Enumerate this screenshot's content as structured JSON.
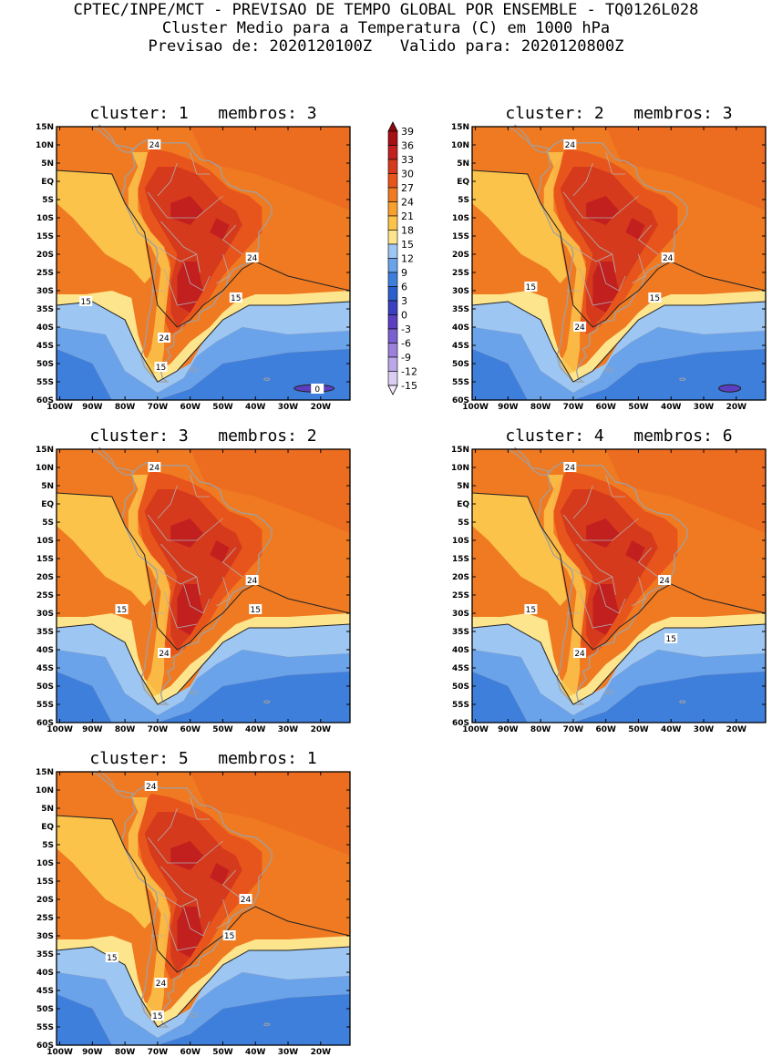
{
  "header": {
    "line1": "CPTEC/INPE/MCT - PREVISAO DE TEMPO GLOBAL POR ENSEMBLE - TQ0126L028",
    "line2": "Cluster Medio para a Temperatura (C) em 1000 hPa",
    "line3": "Previsao de: 2020120100Z   Valido para: 2020120800Z"
  },
  "axes": {
    "lat_labels": [
      "15N",
      "10N",
      "5N",
      "EQ",
      "5S",
      "10S",
      "15S",
      "20S",
      "25S",
      "30S",
      "35S",
      "40S",
      "45S",
      "50S",
      "55S",
      "60S"
    ],
    "lon_labels": [
      "100W",
      "90W",
      "80W",
      "70W",
      "60W",
      "50W",
      "40W",
      "30W",
      "20W"
    ],
    "lon_range": [
      -101,
      -11
    ],
    "lat_range": [
      -60,
      15
    ]
  },
  "colorbar": {
    "labels": [
      "39",
      "36",
      "33",
      "30",
      "27",
      "24",
      "21",
      "18",
      "15",
      "12",
      "9",
      "6",
      "3",
      "0",
      "-3",
      "-6",
      "-9",
      "-12",
      "-15"
    ],
    "colors": [
      "#a50f15",
      "#c21f1f",
      "#d63a1c",
      "#e8551c",
      "#f07a22",
      "#f7a02e",
      "#fbc34a",
      "#fde58d",
      "#9dc6f2",
      "#6aa3ea",
      "#3f7fdc",
      "#2a5fcc",
      "#3a3fc0",
      "#5a3fc0",
      "#7b5fd0",
      "#9c80dc",
      "#bba6e8",
      "#d9cdf2"
    ]
  },
  "panels": [
    {
      "title": "cluster: 1   membros: 3",
      "contour_labels": [
        "24",
        "24",
        "24",
        "15",
        "15",
        "15",
        "0"
      ]
    },
    {
      "title": "cluster: 2   membros: 3",
      "contour_labels": [
        "24",
        "24",
        "24",
        "15",
        "15"
      ]
    },
    {
      "title": "cluster: 3   membros: 2",
      "contour_labels": [
        "24",
        "24",
        "24",
        "15",
        "15"
      ]
    },
    {
      "title": "cluster: 4   membros: 6",
      "contour_labels": [
        "24",
        "24",
        "24",
        "15",
        "15"
      ]
    },
    {
      "title": "cluster: 5   membros: 1",
      "contour_labels": [
        "24",
        "24",
        "24",
        "15",
        "15",
        "15"
      ]
    }
  ]
}
